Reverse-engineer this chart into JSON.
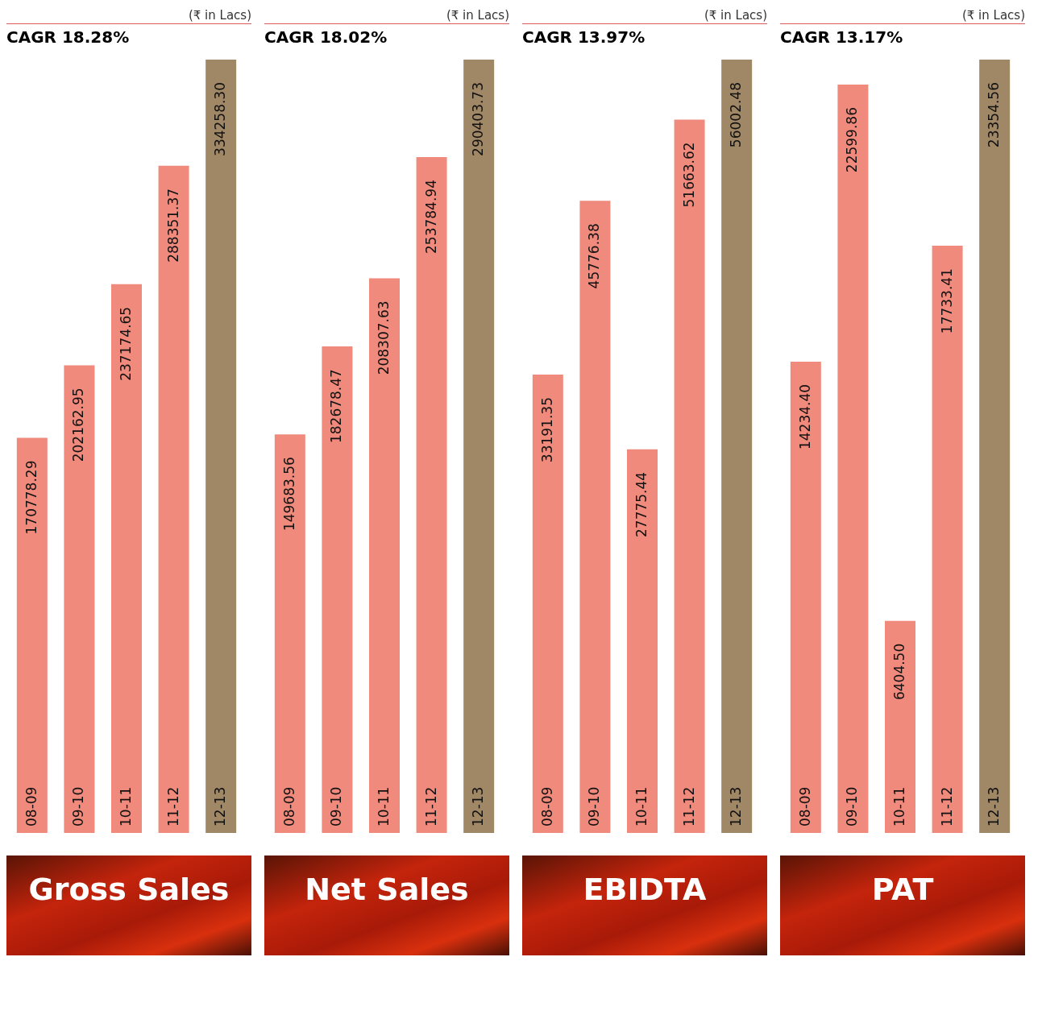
{
  "chart_data": [
    {
      "type": "bar",
      "title": "Gross Sales",
      "subtitle": "CAGR 18.28%",
      "annotations": [
        "(₹ in Lacs)"
      ],
      "categories": [
        "08-09",
        "09-10",
        "10-11",
        "11-12",
        "12-13"
      ],
      "values": [
        170778.29,
        202162.95,
        237174.65,
        288351.37,
        334258.3
      ],
      "value_labels": [
        "170778.29",
        "202162.95",
        "237174.65",
        "288351.37",
        "334258.30"
      ],
      "colors": [
        "#f08a7c",
        "#f08a7c",
        "#f08a7c",
        "#f08a7c",
        "#a08766"
      ]
    },
    {
      "type": "bar",
      "title": "Net Sales",
      "subtitle": "CAGR 18.02%",
      "annotations": [
        "(₹ in Lacs)"
      ],
      "categories": [
        "08-09",
        "09-10",
        "10-11",
        "11-12",
        "12-13"
      ],
      "values": [
        149683.56,
        182678.47,
        208307.63,
        253784.94,
        290403.73
      ],
      "value_labels": [
        "149683.56",
        "182678.47",
        "208307.63",
        "253784.94",
        "290403.73"
      ],
      "colors": [
        "#f08a7c",
        "#f08a7c",
        "#f08a7c",
        "#f08a7c",
        "#a08766"
      ]
    },
    {
      "type": "bar",
      "title": "EBIDTA",
      "subtitle": "CAGR 13.97%",
      "annotations": [
        "(₹ in Lacs)"
      ],
      "categories": [
        "08-09",
        "09-10",
        "10-11",
        "11-12",
        "12-13"
      ],
      "values": [
        33191.35,
        45776.38,
        27775.44,
        51663.62,
        56002.48
      ],
      "value_labels": [
        "33191.35",
        "45776.38",
        "27775.44",
        "51663.62",
        "56002.48"
      ],
      "colors": [
        "#f08a7c",
        "#f08a7c",
        "#f08a7c",
        "#f08a7c",
        "#a08766"
      ]
    },
    {
      "type": "bar",
      "title": "PAT",
      "subtitle": "CAGR 13.17%",
      "annotations": [
        "(₹ in Lacs)"
      ],
      "categories": [
        "08-09",
        "09-10",
        "10-11",
        "11-12",
        "12-13"
      ],
      "values": [
        14234.4,
        22599.86,
        6404.5,
        17733.41,
        23354.56
      ],
      "value_labels": [
        "14234.40",
        "22599.86",
        "6404.50",
        "17733.41",
        "23354.56"
      ],
      "colors": [
        "#f08a7c",
        "#f08a7c",
        "#f08a7c",
        "#f08a7c",
        "#a08766"
      ]
    }
  ]
}
